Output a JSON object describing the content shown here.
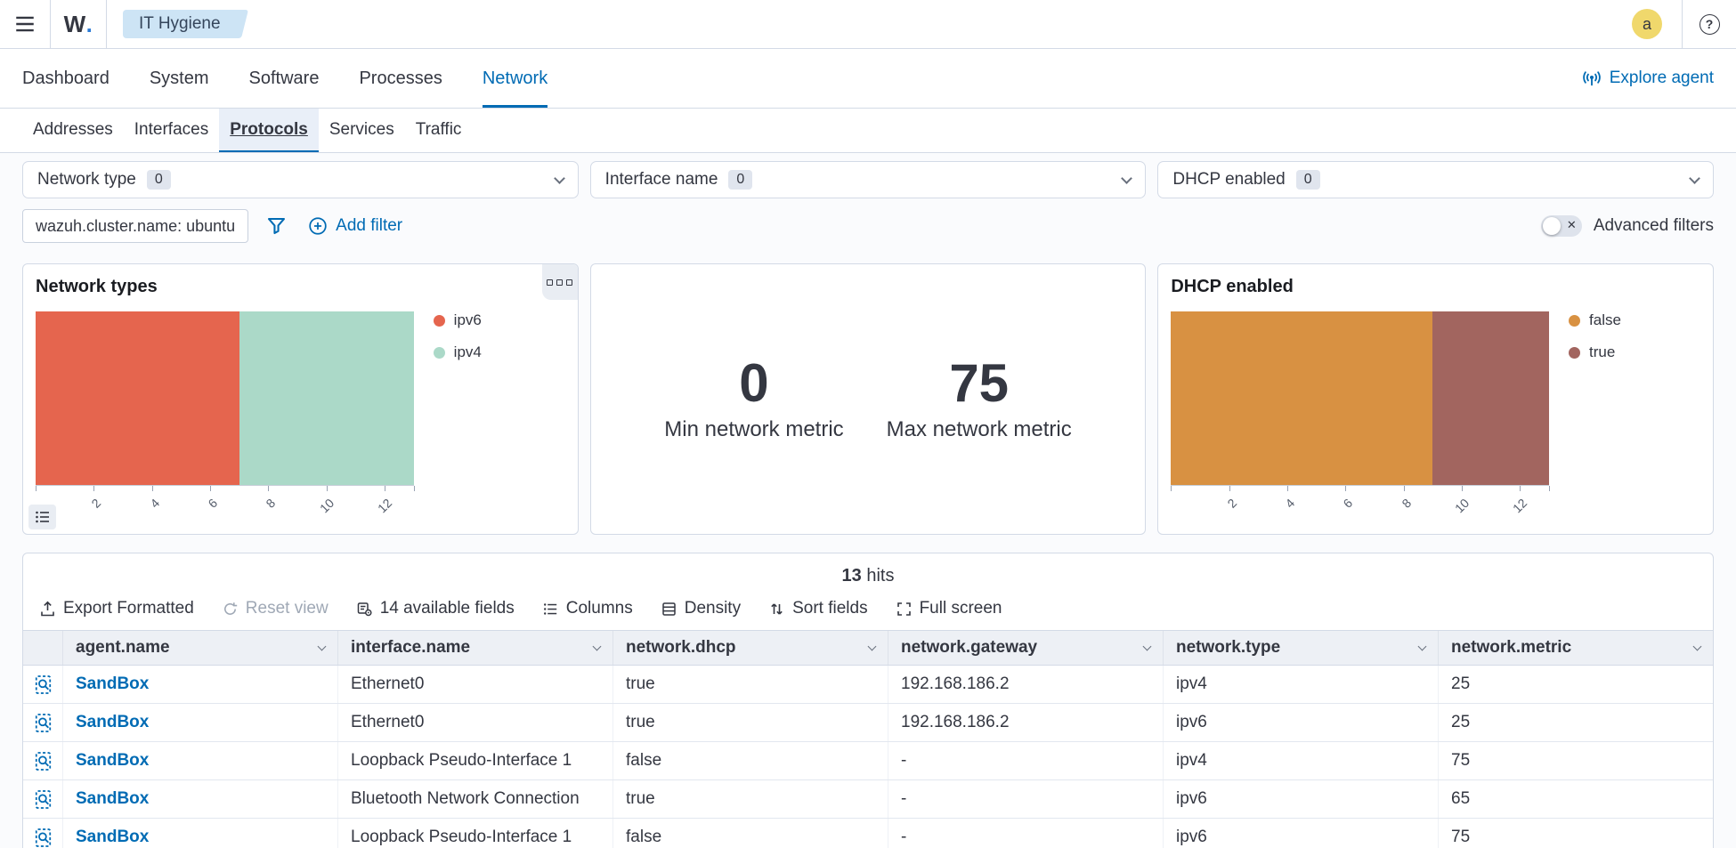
{
  "topbar": {
    "logo_text": "W",
    "logo_dot": ".",
    "breadcrumb": "IT Hygiene",
    "avatar_initial": "a",
    "help_glyph": "?"
  },
  "nav": {
    "tabs": [
      "Dashboard",
      "System",
      "Software",
      "Processes",
      "Network"
    ],
    "active_tab": "Network",
    "explore_agent_label": "Explore agent"
  },
  "subnav": {
    "tabs": [
      "Addresses",
      "Interfaces",
      "Protocols",
      "Services",
      "Traffic"
    ],
    "active_tab": "Protocols"
  },
  "filters": {
    "selects": [
      {
        "label": "Network type",
        "count": "0"
      },
      {
        "label": "Interface name",
        "count": "0"
      },
      {
        "label": "DHCP enabled",
        "count": "0"
      }
    ],
    "pill": "wazuh.cluster.name: ubuntu",
    "add_filter_label": "Add filter",
    "advanced_filters_label": "Advanced filters",
    "toggle_x_glyph": "✕"
  },
  "panels": {
    "network_types": {
      "title": "Network types",
      "segments": [
        {
          "label": "ipv6",
          "value": 7,
          "color": "#e5654e"
        },
        {
          "label": "ipv4",
          "value": 6,
          "color": "#abd9c8"
        }
      ],
      "axis": {
        "max": 13,
        "labels": [
          2,
          4,
          6,
          8,
          10,
          12
        ],
        "marks": [
          0,
          2,
          4,
          6,
          8,
          10,
          12,
          13
        ]
      }
    },
    "metrics": {
      "items": [
        {
          "value": "0",
          "label": "Min network metric"
        },
        {
          "value": "75",
          "label": "Max network metric"
        }
      ]
    },
    "dhcp_enabled": {
      "title": "DHCP enabled",
      "segments": [
        {
          "label": "false",
          "value": 9,
          "color": "#d89142"
        },
        {
          "label": "true",
          "value": 4,
          "color": "#a2655f"
        }
      ],
      "axis": {
        "max": 13,
        "labels": [
          2,
          4,
          6,
          8,
          10,
          12
        ],
        "marks": [
          0,
          2,
          4,
          6,
          8,
          10,
          12,
          13
        ]
      }
    }
  },
  "chart_data": [
    {
      "type": "bar",
      "orientation": "horizontal-stacked",
      "title": "Network types",
      "series": [
        {
          "name": "ipv6",
          "value": 7
        },
        {
          "name": "ipv4",
          "value": 6
        }
      ],
      "xlim": [
        0,
        13
      ],
      "x_ticks": [
        2,
        4,
        6,
        8,
        10,
        12
      ],
      "legend_position": "right",
      "colors": {
        "ipv6": "#e5654e",
        "ipv4": "#abd9c8"
      }
    },
    {
      "type": "metric",
      "values": [
        {
          "label": "Min network metric",
          "value": 0
        },
        {
          "label": "Max network metric",
          "value": 75
        }
      ]
    },
    {
      "type": "bar",
      "orientation": "horizontal-stacked",
      "title": "DHCP enabled",
      "series": [
        {
          "name": "false",
          "value": 9
        },
        {
          "name": "true",
          "value": 4
        }
      ],
      "xlim": [
        0,
        13
      ],
      "x_ticks": [
        2,
        4,
        6,
        8,
        10,
        12
      ],
      "legend_position": "right",
      "colors": {
        "false": "#d89142",
        "true": "#a2655f"
      }
    }
  ],
  "results": {
    "hits_count": "13",
    "hits_label": " hits",
    "toolbar": [
      {
        "label": "Export Formatted",
        "disabled": false
      },
      {
        "label": "Reset view",
        "disabled": true
      },
      {
        "label": "14 available fields",
        "disabled": false
      },
      {
        "label": "Columns",
        "disabled": false
      },
      {
        "label": "Density",
        "disabled": false
      },
      {
        "label": "Sort fields",
        "disabled": false
      },
      {
        "label": "Full screen",
        "disabled": false
      }
    ],
    "table": {
      "columns": [
        "agent.name",
        "interface.name",
        "network.dhcp",
        "network.gateway",
        "network.type",
        "network.metric"
      ],
      "rows": [
        [
          "SandBox",
          "Ethernet0",
          "true",
          "192.168.186.2",
          "ipv4",
          "25"
        ],
        [
          "SandBox",
          "Ethernet0",
          "true",
          "192.168.186.2",
          "ipv6",
          "25"
        ],
        [
          "SandBox",
          "Loopback Pseudo-Interface 1",
          "false",
          "-",
          "ipv4",
          "75"
        ],
        [
          "SandBox",
          "Bluetooth Network Connection",
          "true",
          "-",
          "ipv6",
          "65"
        ],
        [
          "SandBox",
          "Loopback Pseudo-Interface 1",
          "false",
          "-",
          "ipv6",
          "75"
        ]
      ]
    }
  }
}
